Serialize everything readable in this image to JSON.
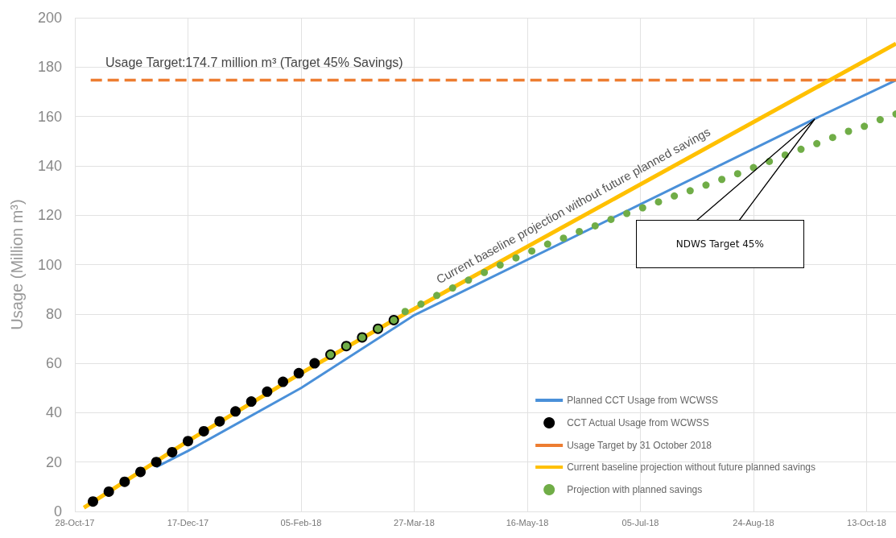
{
  "chart_data": {
    "type": "line",
    "ylabel": "Usage (Million m³)",
    "xlim": [
      "2017-10-28",
      "2018-10-26"
    ],
    "xticks": [
      {
        "value": "2017-10-28",
        "label": "28-Oct-17"
      },
      {
        "value": "2017-12-17",
        "label": "17-Dec-17"
      },
      {
        "value": "2018-02-05",
        "label": "05-Feb-18"
      },
      {
        "value": "2018-03-27",
        "label": "27-Mar-18"
      },
      {
        "value": "2018-05-16",
        "label": "16-May-18"
      },
      {
        "value": "2018-07-05",
        "label": "05-Jul-18"
      },
      {
        "value": "2018-08-24",
        "label": "24-Aug-18"
      },
      {
        "value": "2018-10-13",
        "label": "13-Oct-18"
      }
    ],
    "ylim": [
      0,
      200
    ],
    "yticks": [
      0,
      20,
      40,
      60,
      80,
      100,
      120,
      140,
      160,
      180,
      200
    ],
    "grid": true,
    "legend": "bottom right",
    "series": [
      {
        "name": "Planned CCT Usage from WCWSS",
        "color": "#4a90d9",
        "marker": "none",
        "line_style": "solid",
        "x": [
          "2017-12-03",
          "2017-12-17",
          "2018-02-05",
          "2018-03-27",
          "2018-09-20",
          "2018-10-26"
        ],
        "values": [
          18,
          24.5,
          50,
          79.5,
          159,
          174.7
        ]
      },
      {
        "name": "CCT Actual Usage from WCWSS",
        "type": "scatter",
        "color": "#000000",
        "marker": "circle",
        "x": [
          "2017-11-05",
          "2017-11-12",
          "2017-11-19",
          "2017-11-26",
          "2017-12-03",
          "2017-12-10",
          "2017-12-17",
          "2017-12-24",
          "2017-12-31",
          "2018-01-07",
          "2018-01-14",
          "2018-01-21",
          "2018-01-28",
          "2018-02-04",
          "2018-02-11",
          "2018-02-18",
          "2018-02-25",
          "2018-03-04",
          "2018-03-11",
          "2018-03-18"
        ],
        "values": [
          4,
          8,
          12,
          16,
          20,
          24,
          28.5,
          32.5,
          36.5,
          40.5,
          44.5,
          48.5,
          52.5,
          56,
          60,
          63.5,
          67,
          70.5,
          74,
          77.5
        ]
      },
      {
        "name": "Usage Target by 31 October 2018",
        "color": "#ed7d31",
        "marker": "none",
        "line_style": "dashed",
        "x": [
          "2017-11-04",
          "2018-10-26"
        ],
        "values": [
          174.7,
          174.7
        ]
      },
      {
        "name": "Current baseline projection without future planned savings",
        "color": "#ffc000",
        "marker": "none",
        "line_style": "solid",
        "x": [
          "2017-11-01",
          "2017-12-17",
          "2018-02-05",
          "2018-03-18",
          "2018-10-26"
        ],
        "values": [
          1.5,
          28.5,
          56,
          77.5,
          189.5
        ]
      },
      {
        "name": "Projection with planned savings",
        "type": "scatter",
        "color": "#70ad47",
        "marker": "circle",
        "x": [
          "2018-02-18",
          "2018-02-25",
          "2018-03-04",
          "2018-03-11",
          "2018-03-18",
          "2018-03-23",
          "2018-03-30",
          "2018-04-06",
          "2018-04-13",
          "2018-04-20",
          "2018-04-27",
          "2018-05-04",
          "2018-05-11",
          "2018-05-18",
          "2018-05-25",
          "2018-06-01",
          "2018-06-08",
          "2018-06-15",
          "2018-06-22",
          "2018-06-29",
          "2018-07-06",
          "2018-07-13",
          "2018-07-20",
          "2018-07-27",
          "2018-08-03",
          "2018-08-10",
          "2018-08-17",
          "2018-08-24",
          "2018-08-31",
          "2018-09-07",
          "2018-09-14",
          "2018-09-21",
          "2018-09-28",
          "2018-10-05",
          "2018-10-12",
          "2018-10-19",
          "2018-10-26"
        ],
        "values": [
          63.5,
          67,
          70.5,
          74,
          77.5,
          81,
          84,
          87.5,
          90.5,
          93.7,
          96.8,
          99.8,
          102.7,
          105.5,
          108.3,
          110.7,
          113.4,
          115.7,
          118.3,
          120.7,
          123,
          125.4,
          127.8,
          129.9,
          132.2,
          134.5,
          136.8,
          139.3,
          141.8,
          144.4,
          146.7,
          149,
          151.5,
          154,
          156,
          158.7,
          161
        ]
      }
    ],
    "annotations": [
      "Usage Target:174.7 million m³ (Target 45% Savings)",
      "Current baseline projection without future planned savings",
      "NDWS Target 45%"
    ]
  }
}
